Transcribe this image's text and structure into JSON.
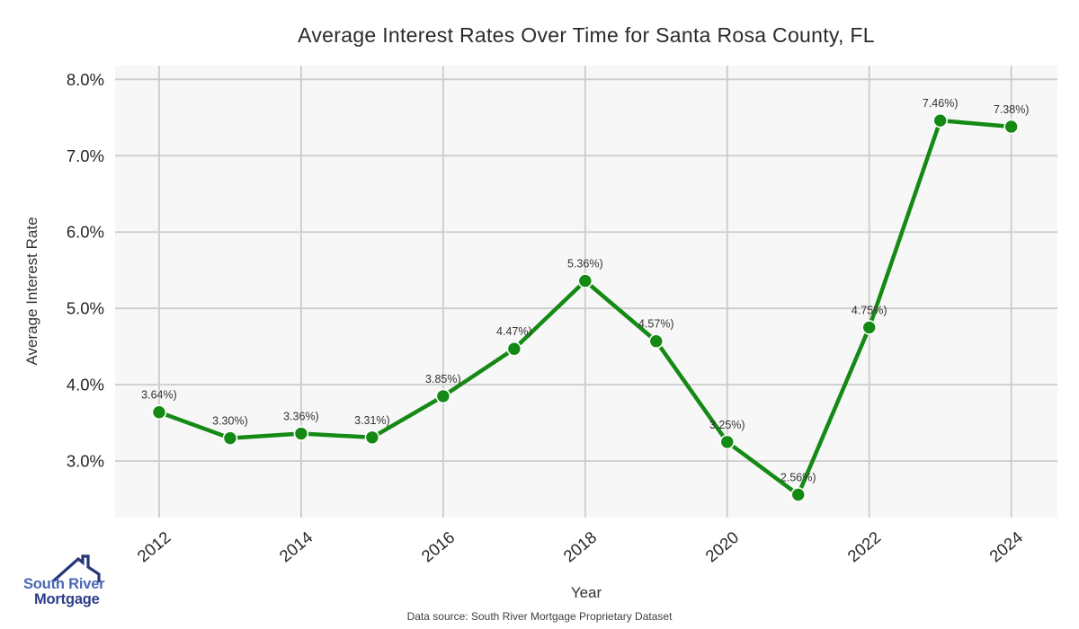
{
  "page": {
    "title": "Average Interest Rates Over Time for Santa Rosa County, FL",
    "footer": "Data source: South River Mortgage Proprietary Dataset"
  },
  "logo": {
    "line1": "South River",
    "line2": "Mortgage",
    "icon": "house-roof-icon",
    "colors": {
      "line1": "#4a68b5",
      "line2": "#2e3e8c",
      "icon": "#283677"
    }
  },
  "chart_data": {
    "type": "line",
    "title": "Average Interest Rates Over Time for Santa Rosa County, FL",
    "xlabel": "Year",
    "ylabel": "Average Interest Rate",
    "x": [
      2012,
      2013,
      2014,
      2015,
      2016,
      2017,
      2018,
      2019,
      2020,
      2021,
      2022,
      2023,
      2024
    ],
    "values": [
      3.64,
      3.3,
      3.36,
      3.31,
      3.85,
      4.47,
      5.36,
      4.57,
      3.25,
      2.56,
      4.75,
      7.46,
      7.38
    ],
    "point_labels": [
      "3.64%)",
      "3.30%)",
      "3.36%)",
      "3.31%)",
      "3.85%)",
      "4.47%)",
      "5.36%)",
      "4.57%)",
      "3.25%)",
      "2.56%)",
      "4.75%)",
      "7.46%)",
      "7.38%)"
    ],
    "x_ticks": {
      "values": [
        2012,
        2014,
        2016,
        2018,
        2020,
        2022,
        2024
      ],
      "labels": [
        "2012",
        "2014",
        "2016",
        "2018",
        "2020",
        "2022",
        "2024"
      ]
    },
    "y_ticks": {
      "values": [
        3,
        4,
        5,
        6,
        7,
        8
      ],
      "labels": [
        "3.0%",
        "4.0%",
        "5.0%",
        "6.0%",
        "7.0%",
        "8.0%"
      ]
    },
    "xlim": [
      2011.38,
      2024.65
    ],
    "ylim": [
      2.26,
      8.18
    ],
    "grid": true,
    "legend": null,
    "colors": {
      "line": "#148a14",
      "marker": "#148a14",
      "marker_edge": "#ffffff",
      "plot_bg": "#f7f7f7",
      "grid": "#cccccc",
      "tick_label": "#262626",
      "data_label": "#333333"
    }
  }
}
